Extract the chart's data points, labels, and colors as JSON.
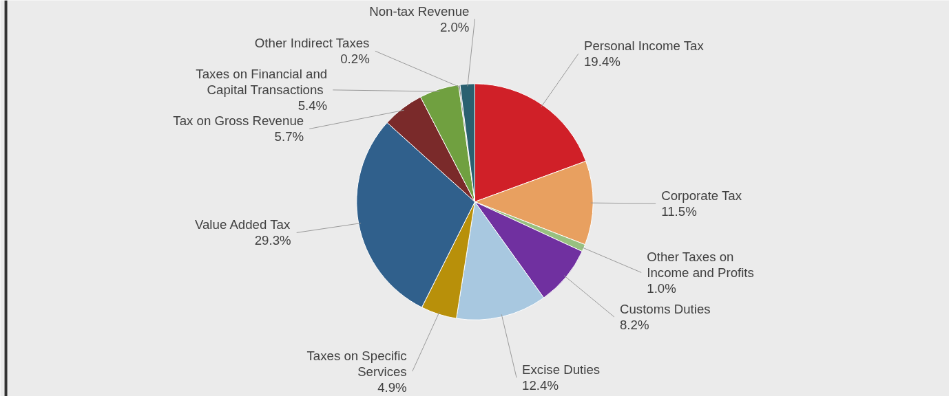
{
  "chart_data": {
    "type": "pie",
    "categories": [
      "Personal Income Tax",
      "Corporate Tax",
      "Other Taxes on\nIncome and Profits",
      "Customs  Duties",
      "Excise Duties",
      "Taxes on Specific\nServices",
      "Value Added Tax",
      "Tax on Gross Revenue",
      "Taxes on Financial and\nCapital  Transactions",
      "Other Indirect Taxes",
      "Non-tax Revenue"
    ],
    "values": [
      19.4,
      11.5,
      1.0,
      8.2,
      12.4,
      4.9,
      29.3,
      5.7,
      5.4,
      0.2,
      2.0
    ],
    "value_labels": [
      "19.4%",
      "11.5%",
      "1.0%",
      "8.2%",
      "12.4%",
      "4.9%",
      "29.3%",
      "5.7%",
      "5.4%",
      "0.2%",
      "2.0%"
    ],
    "colors": [
      "#d02028",
      "#e8a060",
      "#98c080",
      "#7030a0",
      "#a8c8e0",
      "#b8900a",
      "#30608c",
      "#7a2a2a",
      "#70a040",
      "#808080",
      "#2a6070"
    ]
  }
}
